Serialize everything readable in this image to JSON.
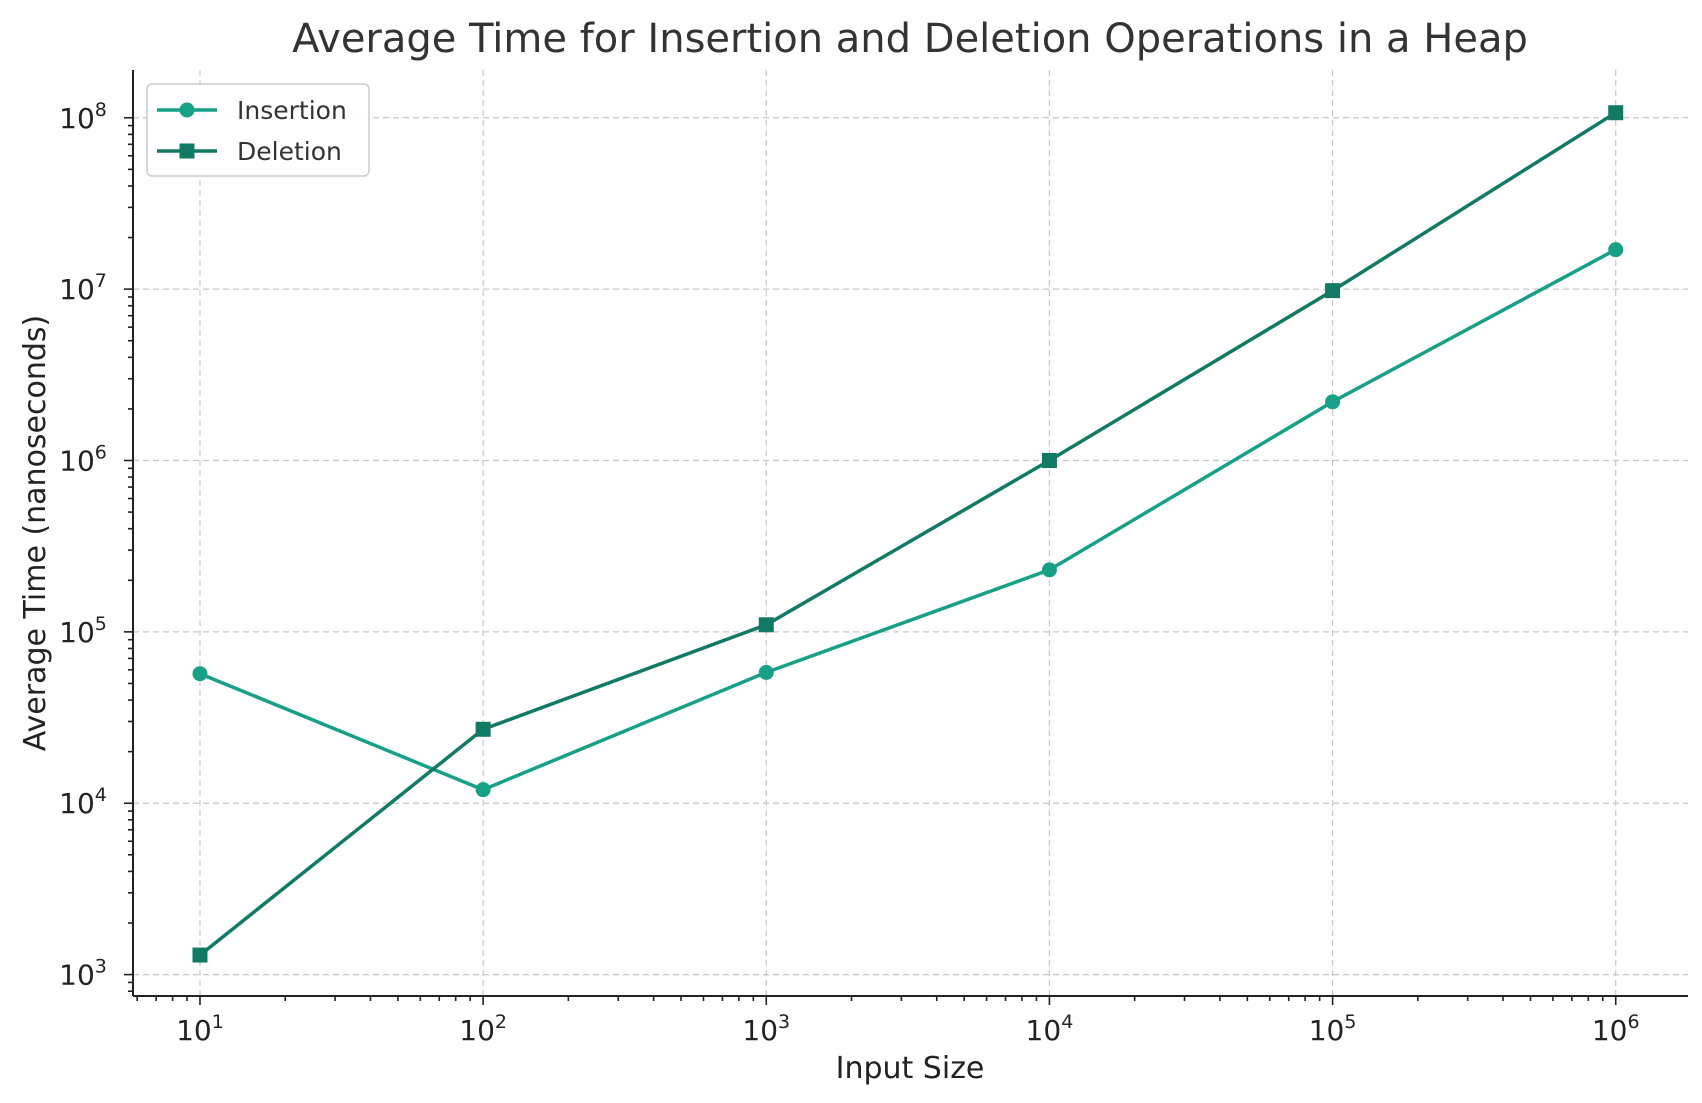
{
  "chart_data": {
    "type": "line",
    "title": "Average Time for Insertion and Deletion Operations in a Heap",
    "xlabel": "Input Size",
    "ylabel": "Average Time (nanoseconds)",
    "x_scale": "log",
    "y_scale": "log",
    "xlim": [
      5.8,
      1800000
    ],
    "ylim": [
      750,
      190000000
    ],
    "x_ticks": [
      {
        "value": 10,
        "base": "10",
        "exp": "1"
      },
      {
        "value": 100,
        "base": "10",
        "exp": "2"
      },
      {
        "value": 1000,
        "base": "10",
        "exp": "3"
      },
      {
        "value": 10000,
        "base": "10",
        "exp": "4"
      },
      {
        "value": 100000,
        "base": "10",
        "exp": "5"
      },
      {
        "value": 1000000,
        "base": "10",
        "exp": "6"
      }
    ],
    "y_ticks": [
      {
        "value": 1000,
        "base": "10",
        "exp": "3"
      },
      {
        "value": 10000,
        "base": "10",
        "exp": "4"
      },
      {
        "value": 100000,
        "base": "10",
        "exp": "5"
      },
      {
        "value": 1000000,
        "base": "10",
        "exp": "6"
      },
      {
        "value": 10000000,
        "base": "10",
        "exp": "7"
      },
      {
        "value": 100000000,
        "base": "10",
        "exp": "8"
      }
    ],
    "grid": true,
    "legend_position": "top-left",
    "x": [
      10,
      100,
      1000,
      10000,
      100000,
      1000000
    ],
    "series": [
      {
        "name": "Insertion",
        "marker": "circle",
        "color": "#16a085",
        "values": [
          57000,
          12000,
          58000,
          230000,
          2200000,
          17000000
        ]
      },
      {
        "name": "Deletion",
        "marker": "square",
        "color": "#117a65",
        "values": [
          1300,
          27000,
          110000,
          1000000,
          9800000,
          107000000
        ]
      }
    ]
  }
}
